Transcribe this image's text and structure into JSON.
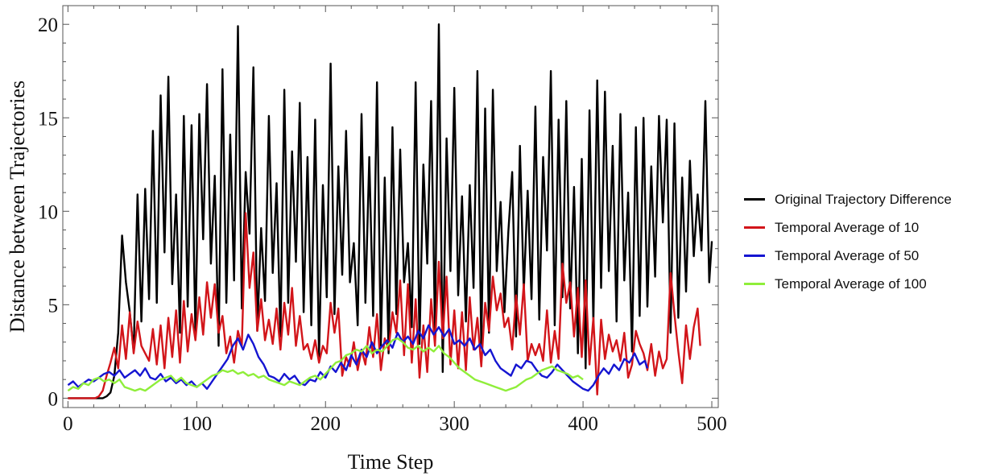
{
  "chart_data": {
    "type": "line",
    "title": "",
    "xlabel": "Time Step",
    "ylabel": "Distance between Trajectories",
    "xlim": [
      -4,
      505
    ],
    "ylim": [
      -0.5,
      21
    ],
    "xticks": [
      0,
      100,
      200,
      300,
      400,
      500
    ],
    "yticks": [
      0,
      5,
      10,
      15,
      20
    ],
    "grid": false,
    "legend_position": "right",
    "series": [
      {
        "name": "Original Trajectory Difference",
        "color": "#000000",
        "x": [
          0,
          3,
          6,
          9,
          12,
          15,
          18,
          21,
          24,
          27,
          30,
          33,
          36,
          39,
          42,
          45,
          48,
          51,
          54,
          57,
          60,
          63,
          66,
          69,
          72,
          75,
          78,
          81,
          84,
          87,
          90,
          93,
          96,
          99,
          102,
          105,
          108,
          111,
          114,
          117,
          120,
          123,
          126,
          129,
          132,
          135,
          138,
          141,
          144,
          147,
          150,
          153,
          156,
          159,
          162,
          165,
          168,
          171,
          174,
          177,
          180,
          183,
          186,
          189,
          192,
          195,
          198,
          201,
          204,
          207,
          210,
          213,
          216,
          219,
          222,
          225,
          228,
          231,
          234,
          237,
          240,
          243,
          246,
          249,
          252,
          255,
          258,
          261,
          264,
          267,
          270,
          273,
          276,
          279,
          282,
          285,
          288,
          291,
          294,
          297,
          300,
          303,
          306,
          309,
          312,
          315,
          318,
          321,
          324,
          327,
          330,
          333,
          336,
          339,
          342,
          345,
          348,
          351,
          354,
          357,
          360,
          363,
          366,
          369,
          372,
          375,
          378,
          381,
          384,
          387,
          390,
          393,
          396,
          399,
          402,
          405,
          408,
          411,
          414,
          417,
          420,
          423,
          426,
          429,
          432,
          435,
          438,
          441,
          444,
          447,
          450,
          453,
          456,
          459,
          462,
          465,
          468,
          471,
          474,
          477,
          480,
          483,
          486,
          489,
          492,
          495,
          498,
          500
        ],
        "values": [
          0,
          0,
          0,
          0,
          0,
          0,
          0,
          0,
          0,
          0,
          0.1,
          0.3,
          1.2,
          3.5,
          8.7,
          6.2,
          4.6,
          2.5,
          10.9,
          4.1,
          11.2,
          5.3,
          14.3,
          5.1,
          16.2,
          7.8,
          17.2,
          6.1,
          10.9,
          3.5,
          15.1,
          4.9,
          14.6,
          3.4,
          15.2,
          8.5,
          16.8,
          7.2,
          11.9,
          2.8,
          17.6,
          5.1,
          14.1,
          6.3,
          19.9,
          4.8,
          12.1,
          8.8,
          17.7,
          3.6,
          9.1,
          5.2,
          15.1,
          6.7,
          11.5,
          3.3,
          16.5,
          5.1,
          13.2,
          7.3,
          15.8,
          4.6,
          12.9,
          3.9,
          14.9,
          2.2,
          11.4,
          5.4,
          17.9,
          4.5,
          12.4,
          6.6,
          14.3,
          6.2,
          8.3,
          3.9,
          15.2,
          5.1,
          12.9,
          4.4,
          16.9,
          2.8,
          11.8,
          2.4,
          14.5,
          4.5,
          13.3,
          6.2,
          8.3,
          3.8,
          16.9,
          2.9,
          12.5,
          7.2,
          15.9,
          3.6,
          20.0,
          1.4,
          13.9,
          6.8,
          16.6,
          5.5,
          10.8,
          4.1,
          11.4,
          5.9,
          17.5,
          2.7,
          15.5,
          3.5,
          16.5,
          6.8,
          10.5,
          4.6,
          8.9,
          12.1,
          3.3,
          13.5,
          5.7,
          11.1,
          5.3,
          15.6,
          4.2,
          12.9,
          7.9,
          17.5,
          3.9,
          14.9,
          5.4,
          15.9,
          4.8,
          11.3,
          2.4,
          12.8,
          1.6,
          15.4,
          4.0,
          17.0,
          5.9,
          16.4,
          6.8,
          13.5,
          4.1,
          15.2,
          6.3,
          11.0,
          2.5,
          14.5,
          4.4,
          15.0,
          4.9,
          12.4,
          6.5,
          15.1,
          9.4,
          14.9,
          3.5,
          14.7,
          4.3,
          11.8,
          5.7,
          12.7,
          7.6,
          10.9,
          7.9,
          15.9,
          6.2,
          8.4
        ]
      },
      {
        "name": "Temporal Average of 10",
        "color": "#d2151a",
        "x": [
          0,
          3,
          6,
          9,
          12,
          15,
          18,
          21,
          24,
          27,
          30,
          33,
          36,
          39,
          42,
          45,
          48,
          51,
          54,
          57,
          60,
          63,
          66,
          69,
          72,
          75,
          78,
          81,
          84,
          87,
          90,
          93,
          96,
          99,
          102,
          105,
          108,
          111,
          114,
          117,
          120,
          123,
          126,
          129,
          132,
          135,
          138,
          141,
          144,
          147,
          150,
          153,
          156,
          159,
          162,
          165,
          168,
          171,
          174,
          177,
          180,
          183,
          186,
          189,
          192,
          195,
          198,
          201,
          204,
          207,
          210,
          213,
          216,
          219,
          222,
          225,
          228,
          231,
          234,
          237,
          240,
          243,
          246,
          249,
          252,
          255,
          258,
          261,
          264,
          267,
          270,
          273,
          276,
          279,
          282,
          285,
          288,
          291,
          294,
          297,
          300,
          303,
          306,
          309,
          312,
          315,
          318,
          321,
          324,
          327,
          330,
          333,
          336,
          339,
          342,
          345,
          348,
          351,
          354,
          357,
          360,
          363,
          366,
          369,
          372,
          375,
          378,
          381,
          384,
          387,
          390,
          393,
          396,
          399,
          402,
          405,
          408,
          411,
          414,
          417,
          420,
          423,
          426,
          429,
          432,
          435,
          438,
          441,
          444,
          447,
          450,
          453,
          456,
          459,
          462,
          465,
          468,
          471,
          474,
          477,
          480,
          483,
          486,
          489,
          491
        ],
        "values": [
          0,
          0,
          0,
          0,
          0,
          0,
          0,
          0,
          0.1,
          0.4,
          1.2,
          1.9,
          2.7,
          1.6,
          3.9,
          2.1,
          4.6,
          2.4,
          4.1,
          2.8,
          2.4,
          2.0,
          3.7,
          1.8,
          3.9,
          1.6,
          4.3,
          2.2,
          4.7,
          1.9,
          5.2,
          2.5,
          4.5,
          3.1,
          5.4,
          3.4,
          6.2,
          4.3,
          6.1,
          3.5,
          4.4,
          2.4,
          3.3,
          1.9,
          3.6,
          2.8,
          9.9,
          5.9,
          7.8,
          3.6,
          5.3,
          3.1,
          4.2,
          2.9,
          4.8,
          2.6,
          5.1,
          3.4,
          5.9,
          2.8,
          4.4,
          2.6,
          2.9,
          2.1,
          3.1,
          1.9,
          2.8,
          2.4,
          5.1,
          3.5,
          4.8,
          1.2,
          2.2,
          1.7,
          3.0,
          1.5,
          2.6,
          1.8,
          3.8,
          2.2,
          4.5,
          1.5,
          3.2,
          2.6,
          4.6,
          3.5,
          6.3,
          2.3,
          6.1,
          1.9,
          5.3,
          1.1,
          3.9,
          1.4,
          5.3,
          2.8,
          7.3,
          3.2,
          6.5,
          1.8,
          4.7,
          1.6,
          4.6,
          1.5,
          5.4,
          2.6,
          4.3,
          1.7,
          5.1,
          3.6,
          6.5,
          4.7,
          5.6,
          3.8,
          4.3,
          2.6,
          5.5,
          3.4,
          6.1,
          2.0,
          2.9,
          2.3,
          2.9,
          2.0,
          4.7,
          1.9,
          3.6,
          2.1,
          7.2,
          5.1,
          6.2,
          3.3,
          5.9,
          2.2,
          6.3,
          1.8,
          4.3,
          0.2,
          4.2,
          2.1,
          3.4,
          2.5,
          3.1,
          2.0,
          3.5,
          1.1,
          1.8,
          3.6,
          2.9,
          2.4,
          1.5,
          2.9,
          1.2,
          2.5,
          1.6,
          2.1,
          6.7,
          4.5,
          2.5,
          0.8,
          3.9,
          2.1,
          3.8,
          4.8,
          2.8
        ]
      },
      {
        "name": "Temporal Average of 50",
        "color": "#1515d1",
        "x": [
          0,
          4,
          8,
          12,
          16,
          20,
          24,
          28,
          32,
          36,
          40,
          44,
          48,
          52,
          56,
          60,
          64,
          68,
          72,
          76,
          80,
          84,
          88,
          92,
          96,
          100,
          104,
          108,
          112,
          116,
          120,
          124,
          128,
          132,
          136,
          140,
          144,
          148,
          152,
          156,
          160,
          164,
          168,
          172,
          176,
          180,
          184,
          188,
          192,
          196,
          200,
          204,
          208,
          212,
          216,
          220,
          224,
          228,
          232,
          236,
          240,
          244,
          248,
          252,
          256,
          260,
          264,
          268,
          272,
          276,
          280,
          284,
          288,
          292,
          296,
          300,
          304,
          308,
          312,
          316,
          320,
          324,
          328,
          332,
          336,
          340,
          344,
          348,
          352,
          356,
          360,
          364,
          368,
          372,
          376,
          380,
          384,
          388,
          392,
          396,
          400,
          404,
          408,
          412,
          416,
          420,
          424,
          428,
          432,
          436,
          440,
          444,
          448,
          450
        ],
        "values": [
          0.7,
          0.9,
          0.6,
          0.8,
          1.0,
          0.9,
          1.1,
          1.3,
          1.4,
          1.2,
          1.5,
          1.1,
          1.3,
          1.5,
          1.2,
          1.6,
          1.1,
          1.0,
          1.3,
          0.9,
          1.1,
          0.8,
          1.0,
          0.7,
          0.9,
          0.6,
          0.8,
          0.5,
          0.9,
          1.3,
          1.7,
          2.1,
          2.8,
          3.2,
          2.6,
          3.4,
          2.9,
          2.2,
          1.8,
          1.2,
          1.1,
          0.9,
          1.3,
          1.0,
          1.2,
          0.8,
          0.7,
          1.0,
          0.9,
          1.4,
          1.1,
          1.7,
          1.4,
          1.9,
          1.5,
          2.3,
          1.8,
          2.6,
          2.2,
          3.0,
          2.4,
          2.8,
          3.1,
          2.7,
          3.5,
          3.0,
          3.3,
          2.9,
          3.6,
          3.2,
          3.9,
          3.4,
          3.8,
          3.3,
          3.7,
          2.9,
          3.1,
          2.8,
          3.2,
          2.6,
          2.9,
          2.3,
          2.6,
          2.0,
          1.6,
          1.4,
          1.2,
          1.8,
          1.6,
          2.0,
          1.9,
          1.5,
          1.2,
          1.1,
          1.4,
          1.8,
          1.5,
          1.2,
          0.9,
          0.7,
          0.5,
          0.4,
          0.7,
          1.2,
          1.6,
          1.3,
          1.8,
          1.5,
          2.1,
          1.9,
          2.4,
          1.8,
          2.0,
          1.6
        ]
      },
      {
        "name": "Temporal Average of 100",
        "color": "#8fee3a",
        "x": [
          0,
          4,
          8,
          12,
          16,
          20,
          24,
          28,
          32,
          36,
          40,
          44,
          48,
          52,
          56,
          60,
          64,
          68,
          72,
          76,
          80,
          84,
          88,
          92,
          96,
          100,
          104,
          108,
          112,
          116,
          120,
          124,
          128,
          132,
          136,
          140,
          144,
          148,
          152,
          156,
          160,
          164,
          168,
          172,
          176,
          180,
          184,
          188,
          192,
          196,
          200,
          204,
          208,
          212,
          216,
          220,
          224,
          228,
          232,
          236,
          240,
          244,
          248,
          252,
          256,
          260,
          264,
          268,
          272,
          276,
          280,
          284,
          288,
          292,
          296,
          300,
          304,
          308,
          312,
          316,
          320,
          324,
          328,
          332,
          336,
          340,
          344,
          348,
          352,
          356,
          360,
          364,
          368,
          372,
          376,
          380,
          384,
          388,
          392,
          396,
          400
        ],
        "values": [
          0.4,
          0.6,
          0.5,
          0.8,
          0.7,
          1.0,
          1.1,
          0.9,
          1.0,
          0.8,
          1.0,
          0.6,
          0.5,
          0.4,
          0.5,
          0.4,
          0.6,
          0.8,
          1.0,
          1.1,
          1.2,
          0.9,
          1.1,
          0.8,
          0.7,
          0.6,
          0.8,
          1.0,
          1.2,
          1.3,
          1.5,
          1.4,
          1.5,
          1.3,
          1.4,
          1.2,
          1.3,
          1.1,
          1.2,
          1.0,
          0.9,
          0.8,
          0.7,
          0.9,
          0.8,
          0.7,
          0.9,
          1.1,
          1.2,
          1.0,
          1.3,
          1.6,
          1.9,
          2.0,
          2.3,
          2.4,
          2.6,
          2.5,
          2.8,
          2.4,
          2.6,
          2.5,
          2.8,
          3.1,
          3.2,
          3.0,
          2.7,
          2.6,
          2.8,
          2.5,
          2.7,
          2.5,
          2.8,
          2.4,
          2.2,
          1.9,
          1.6,
          1.4,
          1.2,
          1.0,
          0.9,
          0.8,
          0.7,
          0.6,
          0.5,
          0.4,
          0.5,
          0.6,
          0.8,
          1.0,
          1.1,
          1.3,
          1.5,
          1.6,
          1.7,
          1.5,
          1.4,
          1.3,
          1.1,
          1.2,
          1.0
        ]
      }
    ]
  }
}
